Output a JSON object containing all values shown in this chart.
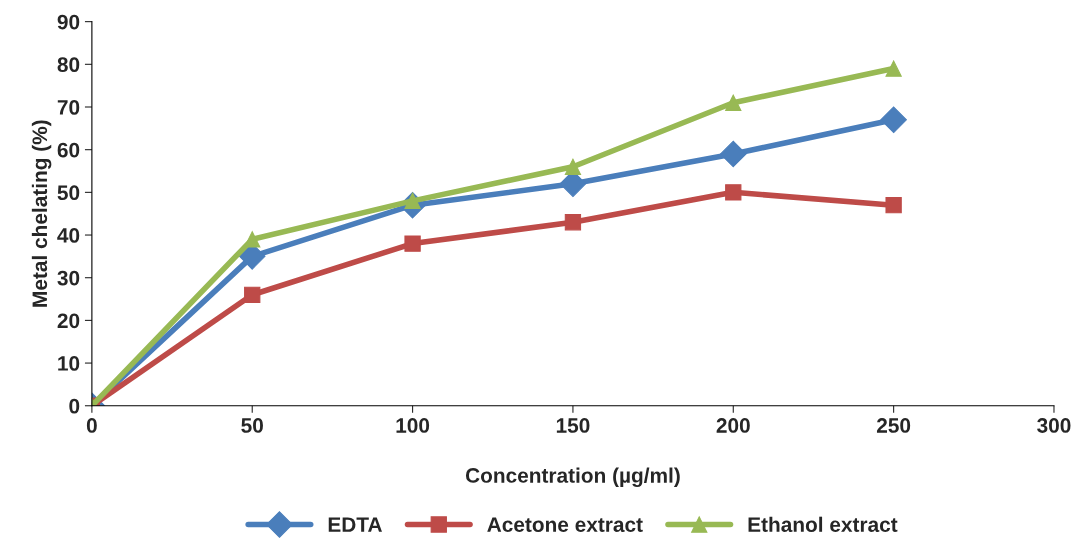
{
  "chart_data": {
    "type": "line",
    "xlabel": "Concentration (µg/ml)",
    "ylabel": "Metal chelating (%)",
    "x": [
      0,
      50,
      100,
      150,
      200,
      250
    ],
    "series": [
      {
        "name": "EDTA",
        "color": "#4a7ebb",
        "marker": "diamond",
        "values": [
          0,
          35,
          47,
          52,
          59,
          67
        ]
      },
      {
        "name": "Acetone extract",
        "color": "#be4b48",
        "marker": "square",
        "values": [
          0,
          26,
          38,
          43,
          50,
          47
        ]
      },
      {
        "name": "Ethanol extract",
        "color": "#98b954",
        "marker": "triangle",
        "values": [
          0,
          39,
          48,
          56,
          71,
          79
        ]
      }
    ],
    "xlim": [
      0,
      300
    ],
    "xticks": [
      0,
      50,
      100,
      150,
      200,
      250,
      300
    ],
    "ylim": [
      0,
      90
    ],
    "yticks": [
      0,
      10,
      20,
      30,
      40,
      50,
      60,
      70,
      80,
      90
    ],
    "grid": false,
    "legend": "bottom",
    "line_style": "solid"
  }
}
